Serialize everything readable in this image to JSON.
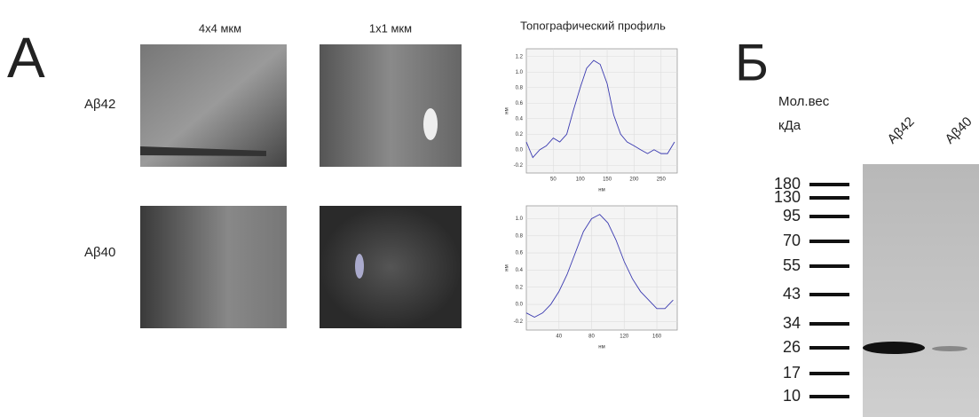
{
  "panel_a": {
    "letter": "А",
    "columns": [
      "4x4 мкм",
      "1x1 мкм",
      "Топографический профиль"
    ],
    "rows": [
      "Aβ42",
      "Aβ40"
    ],
    "profiles": [
      {
        "x": [
          0,
          12,
          25,
          37,
          50,
          62,
          75,
          87,
          100,
          112,
          125,
          137,
          150,
          162,
          175,
          187,
          200,
          212,
          225,
          237,
          250,
          262,
          275
        ],
        "values": [
          0.1,
          -0.1,
          0,
          0.05,
          0.15,
          0.1,
          0.2,
          0.5,
          0.8,
          1.05,
          1.15,
          1.1,
          0.85,
          0.45,
          0.2,
          0.1,
          0.05,
          0,
          -0.05,
          0,
          -0.05,
          -0.05,
          0.1
        ],
        "color": "#3a3ab0",
        "xlim": [
          0,
          280
        ],
        "ylim": [
          -0.3,
          1.3
        ],
        "xticks": [
          50,
          100,
          150,
          200,
          250
        ],
        "yticks": [
          {
            "value": -0.2,
            "label": "-0.2"
          },
          {
            "value": 0,
            "label": "0.0"
          },
          0.2,
          0.4,
          0.6,
          0.8,
          {
            "value": 1,
            "label": "1.0"
          },
          1.2
        ],
        "x_label": "нм",
        "y_label": "нм"
      },
      {
        "x": [
          0,
          10,
          20,
          30,
          40,
          50,
          60,
          70,
          80,
          90,
          100,
          110,
          120,
          130,
          140,
          150,
          160,
          170,
          180
        ],
        "values": [
          -0.1,
          -0.15,
          -0.1,
          0,
          0.15,
          0.35,
          0.6,
          0.85,
          1,
          1.05,
          0.95,
          0.75,
          0.5,
          0.3,
          0.15,
          0.05,
          -0.05,
          -0.05,
          0.05
        ],
        "color": "#3a3ab0",
        "xlim": [
          0,
          185
        ],
        "ylim": [
          -0.3,
          1.15
        ],
        "xticks": [
          40,
          80,
          120,
          160
        ],
        "yticks": [
          {
            "value": -0.2,
            "label": "-0.2"
          },
          {
            "value": 0,
            "label": "0.0"
          },
          0.2,
          0.4,
          0.6,
          0.8,
          {
            "value": 1,
            "label": "1.0"
          }
        ],
        "x_label": "нм",
        "y_label": "нм"
      }
    ]
  },
  "panel_b": {
    "letter": "Б",
    "mw_label": [
      "Мол.вес",
      "кДа"
    ],
    "lanes": [
      "Aβ42",
      "Aβ40"
    ],
    "markers": [
      180,
      130,
      95,
      70,
      55,
      43,
      34,
      26,
      17,
      10
    ]
  }
}
